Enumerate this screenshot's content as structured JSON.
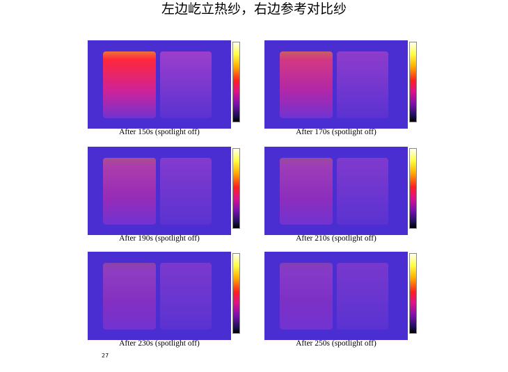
{
  "title": "左边屹立热纱，右边参考对比纱",
  "panels": [
    {
      "caption": "After 150s (spotlight off)"
    },
    {
      "caption": "After 170s (spotlight off)"
    },
    {
      "caption": "After 190s (spotlight off)"
    },
    {
      "caption": "After 210s (spotlight off)"
    },
    {
      "caption": "After 230s (spotlight off)"
    },
    {
      "caption": "After 250s (spotlight off)"
    }
  ],
  "page_number": "27"
}
